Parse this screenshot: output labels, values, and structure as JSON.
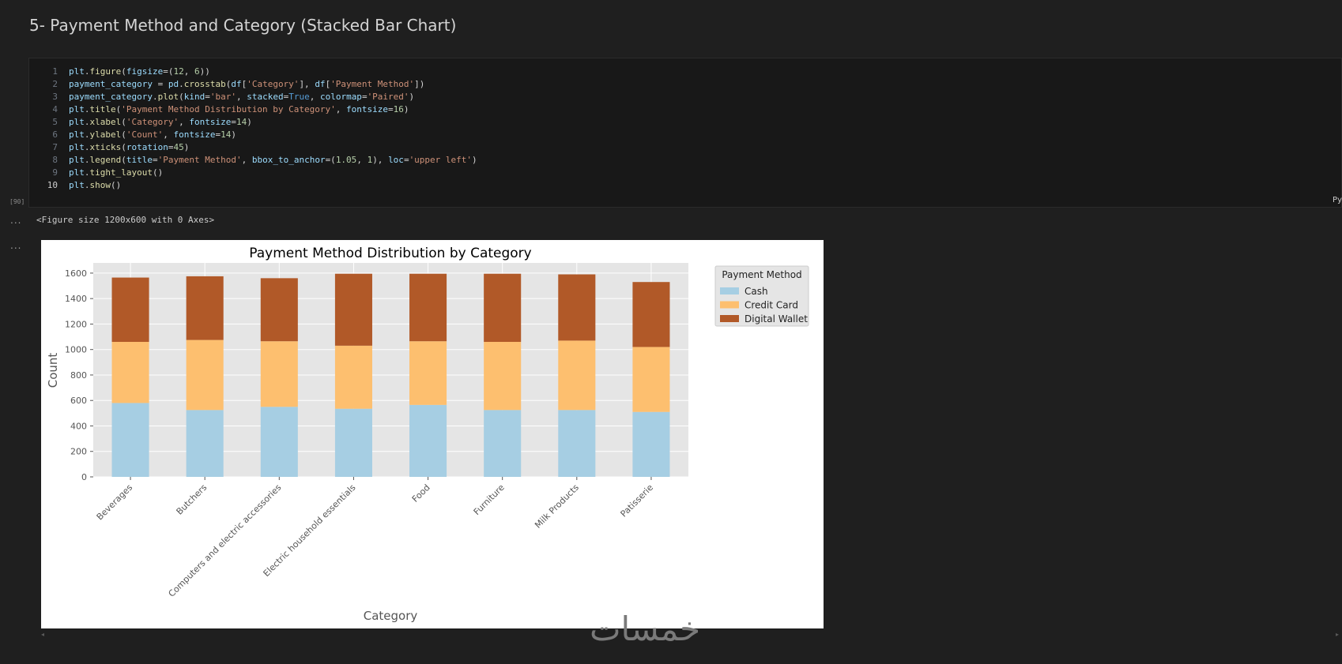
{
  "markdown": {
    "heading": "5- Payment Method and Category (Stacked Bar Chart)"
  },
  "code_cell": {
    "execution_count": "[90]",
    "language_tag": "Py",
    "lines": [
      {
        "n": "1",
        "code": "plt.figure(figsize=(12, 6))"
      },
      {
        "n": "2",
        "code": "payment_category = pd.crosstab(df['Category'], df['Payment Method'])"
      },
      {
        "n": "3",
        "code": "payment_category.plot(kind='bar', stacked=True, colormap='Paired')"
      },
      {
        "n": "4",
        "code": "plt.title('Payment Method Distribution by Category', fontsize=16)"
      },
      {
        "n": "5",
        "code": "plt.xlabel('Category', fontsize=14)"
      },
      {
        "n": "6",
        "code": "plt.ylabel('Count', fontsize=14)"
      },
      {
        "n": "7",
        "code": "plt.xticks(rotation=45)"
      },
      {
        "n": "8",
        "code": "plt.legend(title='Payment Method', bbox_to_anchor=(1.05, 1), loc='upper left')"
      },
      {
        "n": "9",
        "code": "plt.tight_layout()"
      },
      {
        "n": "10",
        "code": "plt.show()"
      }
    ]
  },
  "outputs": {
    "ellipsis": "...",
    "text_output": "<Figure size 1200x600 with 0 Axes>"
  },
  "chart_data": {
    "type": "bar",
    "stacked": true,
    "title": "Payment Method Distribution by Category",
    "xlabel": "Category",
    "ylabel": "Count",
    "ylim": [
      0,
      1680
    ],
    "yticks": [
      0,
      200,
      400,
      600,
      800,
      1000,
      1200,
      1400,
      1600
    ],
    "grid": true,
    "legend_title": "Payment Method",
    "legend_placement": "outside-top-right",
    "categories": [
      "Beverages",
      "Butchers",
      "Computers and electric accessories",
      "Electric household essentials",
      "Food",
      "Furniture",
      "Milk Products",
      "Patisserie"
    ],
    "series": [
      {
        "name": "Cash",
        "color": "#a6cee3",
        "values": [
          580,
          525,
          550,
          535,
          565,
          525,
          525,
          510
        ]
      },
      {
        "name": "Credit Card",
        "color": "#fdbf6f",
        "values": [
          480,
          550,
          515,
          495,
          500,
          535,
          545,
          510
        ]
      },
      {
        "name": "Digital Wallet",
        "color": "#b15928",
        "values": [
          505,
          500,
          495,
          565,
          530,
          535,
          520,
          510
        ]
      }
    ]
  },
  "watermark": {
    "text": "خمسات"
  },
  "colors": {
    "background": "#1f1f1f",
    "plot_bg": "#e5e5e5",
    "grid": "#ffffff"
  }
}
